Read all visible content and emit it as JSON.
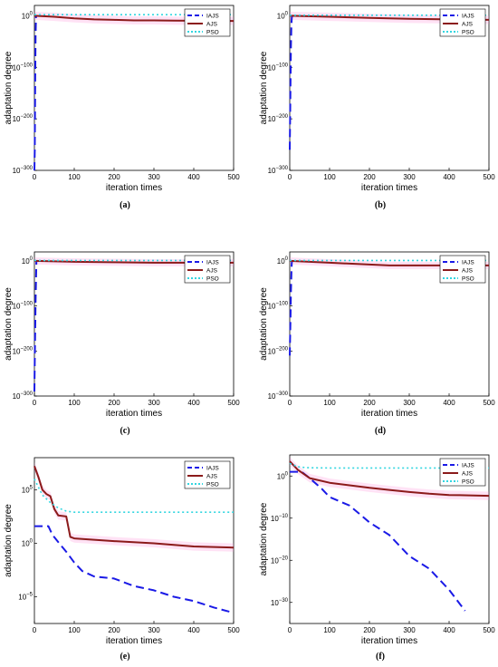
{
  "figure": {
    "captions": [
      "(a)",
      "(b)",
      "(c)",
      "(d)",
      "(e)",
      "(f)"
    ]
  },
  "style": {
    "colors": {
      "IAJS": "#1a1ae6",
      "AJS": "#8b1a1a",
      "PSO": "#33d6e0",
      "band": "#ff8cd9",
      "axis": "#000000"
    }
  },
  "chart_data": [
    {
      "type": "line",
      "panel": "a",
      "xlabel": "iteration times",
      "ylabel": "adaptation degree",
      "xlim": [
        0,
        500
      ],
      "ylim_exp": [
        -300,
        20
      ],
      "y_scale": "log",
      "xticks": [
        0,
        100,
        200,
        300,
        400,
        500
      ],
      "yticks": [
        {
          "exp": 0,
          "label": "10^0"
        },
        {
          "exp": -100,
          "label": "10^-100"
        },
        {
          "exp": -200,
          "label": "10^-200"
        },
        {
          "exp": -300,
          "label": "10^-300"
        }
      ],
      "legend": [
        "IAJS",
        "AJS",
        "PSO"
      ],
      "legend_position": "top-right",
      "series": [
        {
          "name": "IAJS",
          "x": [
            0,
            1,
            2,
            3,
            4
          ],
          "y_exp": [
            -300,
            -260,
            -120,
            -40,
            0
          ]
        },
        {
          "name": "AJS",
          "x": [
            0,
            50,
            100,
            150,
            200,
            250,
            300,
            350,
            400,
            450,
            500
          ],
          "y_exp": [
            0,
            -2,
            -5,
            -7,
            -8,
            -9,
            -9,
            -9.5,
            -9.8,
            -10,
            -10
          ]
        },
        {
          "name": "PSO",
          "x": [
            0,
            50,
            100,
            200,
            300,
            400,
            500
          ],
          "y_exp": [
            2,
            2,
            2,
            2,
            2,
            2,
            2
          ]
        }
      ]
    },
    {
      "type": "line",
      "panel": "b",
      "xlabel": "iteration times",
      "ylabel": "adaptation degree",
      "xlim": [
        0,
        500
      ],
      "ylim_exp": [
        -300,
        20
      ],
      "y_scale": "log",
      "xticks": [
        0,
        100,
        200,
        300,
        400,
        500
      ],
      "yticks": [
        {
          "exp": 0,
          "label": "10^0"
        },
        {
          "exp": -100,
          "label": "10^-100"
        },
        {
          "exp": -200,
          "label": "10^-200"
        },
        {
          "exp": -300,
          "label": "10^-300"
        }
      ],
      "legend": [
        "IAJS",
        "AJS",
        "PSO"
      ],
      "legend_position": "top-right",
      "series": [
        {
          "name": "IAJS",
          "x": [
            0,
            1,
            2,
            3,
            4,
            5,
            6
          ],
          "y_exp": [
            -260,
            -200,
            -120,
            -60,
            -20,
            -5,
            0
          ]
        },
        {
          "name": "AJS",
          "x": [
            0,
            100,
            200,
            300,
            400,
            500
          ],
          "y_exp": [
            0,
            -2,
            -4,
            -6,
            -7,
            -8
          ]
        },
        {
          "name": "PSO",
          "x": [
            0,
            100,
            200,
            300,
            400,
            500
          ],
          "y_exp": [
            1,
            1,
            1,
            1,
            1,
            1
          ]
        }
      ]
    },
    {
      "type": "line",
      "panel": "c",
      "xlabel": "iteration times",
      "ylabel": "adaptation degree",
      "xlim": [
        0,
        500
      ],
      "ylim_exp": [
        -300,
        20
      ],
      "y_scale": "log",
      "xticks": [
        0,
        100,
        200,
        300,
        400,
        500
      ],
      "yticks": [
        {
          "exp": 0,
          "label": "10^0"
        },
        {
          "exp": -100,
          "label": "10^-100"
        },
        {
          "exp": -200,
          "label": "10^-200"
        },
        {
          "exp": -300,
          "label": "10^-300"
        }
      ],
      "legend": [
        "IAJS",
        "AJS",
        "PSO"
      ],
      "legend_position": "top-right",
      "series": [
        {
          "name": "IAJS",
          "x": [
            0,
            1,
            2,
            3,
            4,
            5
          ],
          "y_exp": [
            -290,
            -220,
            -150,
            -90,
            -40,
            0
          ]
        },
        {
          "name": "AJS",
          "x": [
            0,
            100,
            200,
            300,
            400,
            500
          ],
          "y_exp": [
            0,
            -2,
            -3,
            -4,
            -4,
            -4
          ]
        },
        {
          "name": "PSO",
          "x": [
            0,
            100,
            200,
            300,
            400,
            500
          ],
          "y_exp": [
            1,
            1,
            1,
            1,
            1,
            1
          ]
        }
      ]
    },
    {
      "type": "line",
      "panel": "d",
      "xlabel": "iteration times",
      "ylabel": "adaptation degree",
      "xlim": [
        0,
        500
      ],
      "ylim_exp": [
        -300,
        20
      ],
      "y_scale": "log",
      "xticks": [
        0,
        100,
        200,
        300,
        400,
        500
      ],
      "yticks": [
        {
          "exp": 0,
          "label": "10^0"
        },
        {
          "exp": -100,
          "label": "10^-100"
        },
        {
          "exp": -200,
          "label": "10^-200"
        },
        {
          "exp": -300,
          "label": "10^-300"
        }
      ],
      "legend": [
        "IAJS",
        "AJS",
        "PSO"
      ],
      "legend_position": "top-right",
      "series": [
        {
          "name": "IAJS",
          "x": [
            0,
            1,
            2,
            3,
            4,
            5,
            6
          ],
          "y_exp": [
            -210,
            -170,
            -120,
            -70,
            -30,
            -5,
            0
          ]
        },
        {
          "name": "AJS",
          "x": [
            0,
            100,
            200,
            250,
            300,
            400,
            500
          ],
          "y_exp": [
            0,
            -4,
            -8,
            -10,
            -10,
            -10,
            -10
          ]
        },
        {
          "name": "PSO",
          "x": [
            0,
            100,
            200,
            300,
            400,
            500
          ],
          "y_exp": [
            1,
            1,
            1,
            1,
            1,
            1
          ]
        }
      ]
    },
    {
      "type": "line",
      "panel": "e",
      "xlabel": "iteration times",
      "ylabel": "adaptation degree",
      "xlim": [
        0,
        500
      ],
      "ylim_exp": [
        -7.5,
        8
      ],
      "y_scale": "log",
      "xticks": [
        0,
        100,
        200,
        300,
        400,
        500
      ],
      "yticks": [
        {
          "exp": 5,
          "label": "10^5"
        },
        {
          "exp": 0,
          "label": "10^0"
        },
        {
          "exp": -5,
          "label": "10^-5"
        }
      ],
      "legend": [
        "IAJS",
        "AJS",
        "PSO"
      ],
      "legend_position": "top-right",
      "series": [
        {
          "name": "IAJS",
          "x": [
            0,
            35,
            45,
            60,
            80,
            100,
            120,
            150,
            200,
            250,
            300,
            350,
            400,
            450,
            500
          ],
          "y_exp": [
            1.6,
            1.6,
            0.8,
            0.1,
            -0.8,
            -1.8,
            -2.6,
            -3.1,
            -3.3,
            -4.0,
            -4.4,
            -5.0,
            -5.4,
            -6.0,
            -6.5
          ]
        },
        {
          "name": "AJS",
          "x": [
            0,
            10,
            20,
            30,
            40,
            50,
            60,
            80,
            90,
            100,
            200,
            300,
            400,
            500
          ],
          "y_exp": [
            7.2,
            6.2,
            5.0,
            4.6,
            4.4,
            3.2,
            2.6,
            2.5,
            0.6,
            0.45,
            0.2,
            0,
            -0.3,
            -0.4
          ]
        },
        {
          "name": "PSO",
          "x": [
            0,
            20,
            40,
            60,
            80,
            100,
            200,
            300,
            400,
            500
          ],
          "y_exp": [
            6.0,
            4.5,
            3.8,
            3.3,
            3.0,
            2.9,
            2.9,
            2.9,
            2.9,
            2.9
          ]
        }
      ]
    },
    {
      "type": "line",
      "panel": "f",
      "xlabel": "iteration times",
      "ylabel": "adaptation degree",
      "xlim": [
        0,
        500
      ],
      "ylim_exp": [
        -35,
        5
      ],
      "y_scale": "log",
      "xticks": [
        0,
        100,
        200,
        300,
        400,
        500
      ],
      "yticks": [
        {
          "exp": 0,
          "label": "10^0"
        },
        {
          "exp": -10,
          "label": "10^-10"
        },
        {
          "exp": -20,
          "label": "10^-20"
        },
        {
          "exp": -30,
          "label": "10^-30"
        }
      ],
      "legend": [
        "IAJS",
        "AJS",
        "PSO"
      ],
      "legend_position": "top-right",
      "series": [
        {
          "name": "IAJS",
          "x": [
            0,
            30,
            50,
            80,
            100,
            150,
            200,
            250,
            300,
            350,
            400,
            440
          ],
          "y_exp": [
            1,
            1,
            -0.5,
            -3,
            -5,
            -7,
            -11,
            -14,
            -19,
            -22,
            -27,
            -32
          ]
        },
        {
          "name": "AJS",
          "x": [
            0,
            20,
            50,
            100,
            150,
            200,
            250,
            300,
            350,
            400,
            450,
            500
          ],
          "y_exp": [
            3.5,
            1.5,
            -0.5,
            -1.6,
            -2.2,
            -2.8,
            -3.3,
            -3.8,
            -4.2,
            -4.5,
            -4.6,
            -4.7
          ]
        },
        {
          "name": "PSO",
          "x": [
            0,
            20,
            40,
            60,
            100,
            200,
            300,
            400,
            500
          ],
          "y_exp": [
            3,
            2.2,
            2.0,
            1.95,
            1.9,
            1.9,
            1.9,
            1.9,
            1.9
          ]
        }
      ]
    }
  ]
}
